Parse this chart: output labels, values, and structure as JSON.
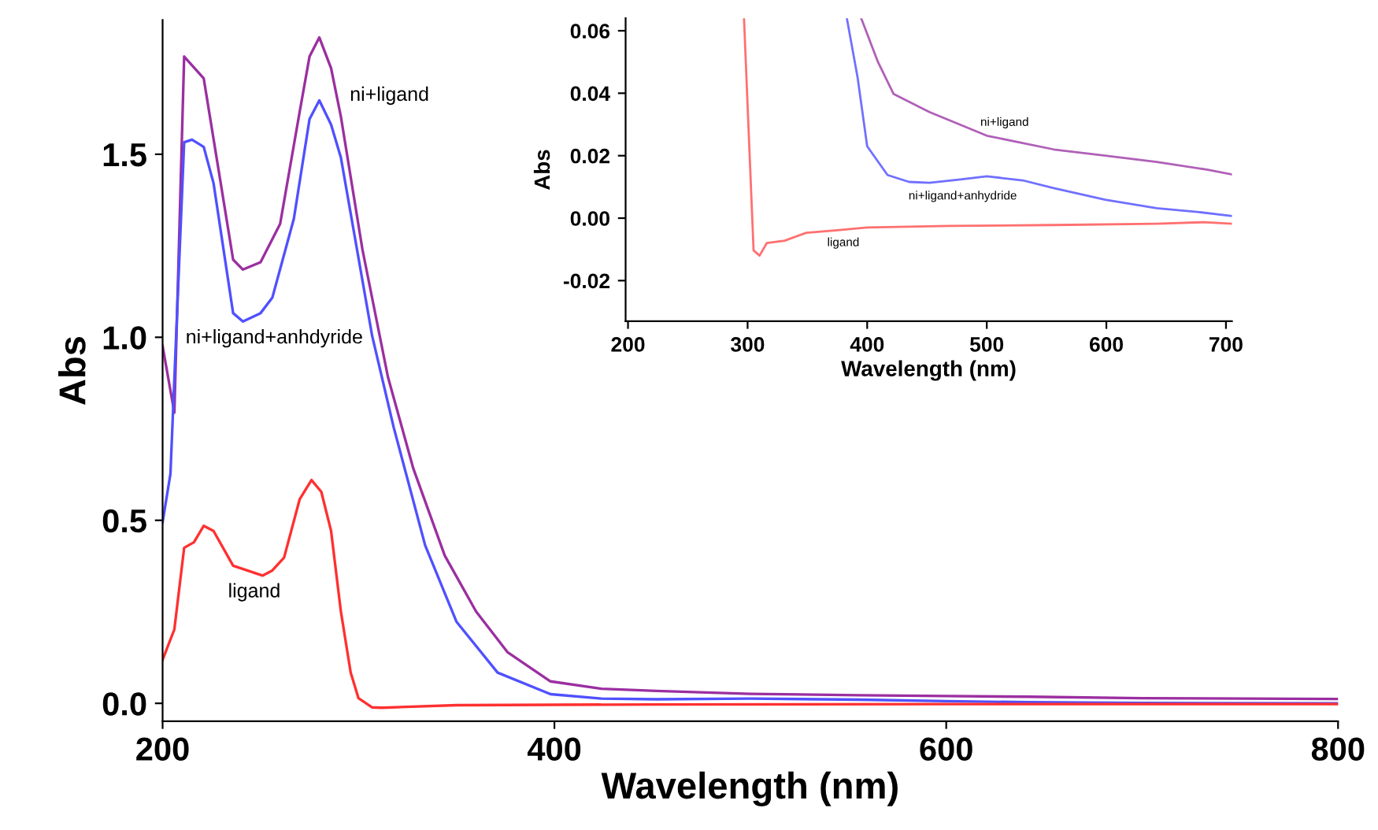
{
  "chart_data": [
    {
      "type": "line",
      "xlabel": "Wavelength (nm)",
      "ylabel": "Abs",
      "xlim": [
        200,
        800
      ],
      "ylim": [
        -0.049,
        1.867
      ],
      "xticks": [
        200,
        400,
        600,
        800
      ],
      "yticks": [
        {
          "value": 0,
          "label": "0.0"
        },
        {
          "value": 0.5,
          "label": "0.5"
        },
        {
          "value": 1.0,
          "label": "1.0"
        },
        {
          "value": 1.5,
          "label": "1.5"
        }
      ],
      "grid": false,
      "legend": false,
      "marker": "none",
      "line_style": "solid",
      "series": [
        {
          "name": "ni+ligand",
          "color": "#9b2fa0",
          "x": [
            200,
            206,
            211,
            221,
            236,
            241,
            250,
            260,
            270,
            275,
            280,
            286,
            291,
            302,
            315,
            328,
            344,
            360,
            376,
            398,
            424,
            452,
            500,
            556,
            600,
            642,
            700,
            800
          ],
          "values": [
            0.976,
            0.794,
            1.767,
            1.707,
            1.212,
            1.185,
            1.205,
            1.31,
            1.617,
            1.767,
            1.819,
            1.735,
            1.603,
            1.24,
            0.892,
            0.641,
            0.404,
            0.251,
            0.14,
            0.06,
            0.04,
            0.034,
            0.026,
            0.022,
            0.02,
            0.018,
            0.014,
            0.012
          ]
        },
        {
          "name": "ni+ligand+anhdyride",
          "color": "#5050ff",
          "x": [
            200,
            204,
            211,
            215,
            221,
            226,
            236,
            241,
            250,
            256,
            267,
            275,
            280,
            286,
            291,
            307,
            318,
            334,
            350,
            371,
            398,
            424,
            452,
            500,
            556,
            600,
            642,
            700,
            800
          ],
          "values": [
            0.495,
            0.627,
            1.533,
            1.54,
            1.52,
            1.421,
            1.066,
            1.043,
            1.066,
            1.108,
            1.324,
            1.596,
            1.647,
            1.581,
            1.491,
            1.003,
            0.753,
            0.432,
            0.223,
            0.084,
            0.025,
            0.013,
            0.011,
            0.013,
            0.01,
            0.006,
            0.003,
            0.001,
            0.0
          ]
        },
        {
          "name": "ligand",
          "color": "#ff3030",
          "x": [
            200,
            206,
            211,
            216,
            221,
            226,
            236,
            251,
            256,
            262,
            270,
            276,
            281,
            286,
            291,
            296,
            300,
            307,
            312,
            350,
            450,
            600,
            800
          ],
          "values": [
            0.119,
            0.202,
            0.425,
            0.44,
            0.485,
            0.471,
            0.376,
            0.349,
            0.363,
            0.398,
            0.558,
            0.61,
            0.578,
            0.471,
            0.251,
            0.084,
            0.014,
            -0.011,
            -0.012,
            -0.005,
            -0.003,
            -0.002,
            -0.002
          ]
        }
      ]
    },
    {
      "type": "line",
      "xlabel": "Wavelength (nm)",
      "ylabel": "Abs",
      "xlim": [
        198,
        705
      ],
      "ylim": [
        -0.033,
        0.064
      ],
      "xticks": [
        200,
        300,
        400,
        500,
        600,
        700
      ],
      "yticks": [
        {
          "value": 0.06,
          "label": "0.06"
        },
        {
          "value": 0.04,
          "label": "0.04"
        },
        {
          "value": 0.02,
          "label": "0.02"
        },
        {
          "value": 0.0,
          "label": "0.00"
        },
        {
          "value": -0.02,
          "label": "-0.02"
        }
      ],
      "grid": false,
      "legend": false,
      "marker": "none",
      "line_style": "solid",
      "series": [
        {
          "name": "ni+ligand",
          "color": "#b060b8",
          "x": [
            395,
            409,
            422,
            452,
            500,
            556,
            599,
            642,
            685,
            705
          ],
          "values": [
            0.064,
            0.05,
            0.0398,
            0.034,
            0.0264,
            0.022,
            0.02,
            0.018,
            0.0155,
            0.014
          ]
        },
        {
          "name": "ni+ligand+anhydride",
          "color": "#7070ff",
          "x": [
            383,
            392,
            400,
            417,
            435,
            452,
            478,
            500,
            530,
            556,
            599,
            642,
            676,
            705
          ],
          "values": [
            0.064,
            0.045,
            0.023,
            0.0138,
            0.0116,
            0.0113,
            0.0124,
            0.0134,
            0.0121,
            0.0096,
            0.0059,
            0.0032,
            0.002,
            0.0007
          ]
        },
        {
          "name": "ligand",
          "color": "#ff7070",
          "x": [
            297,
            305,
            310,
            316,
            331,
            349,
            375,
            400,
            469,
            556,
            642,
            681,
            705
          ],
          "values": [
            0.064,
            -0.0103,
            -0.012,
            -0.008,
            -0.0072,
            -0.0047,
            -0.0039,
            -0.003,
            -0.0025,
            -0.0022,
            -0.0018,
            -0.0013,
            -0.0018
          ]
        }
      ]
    }
  ]
}
